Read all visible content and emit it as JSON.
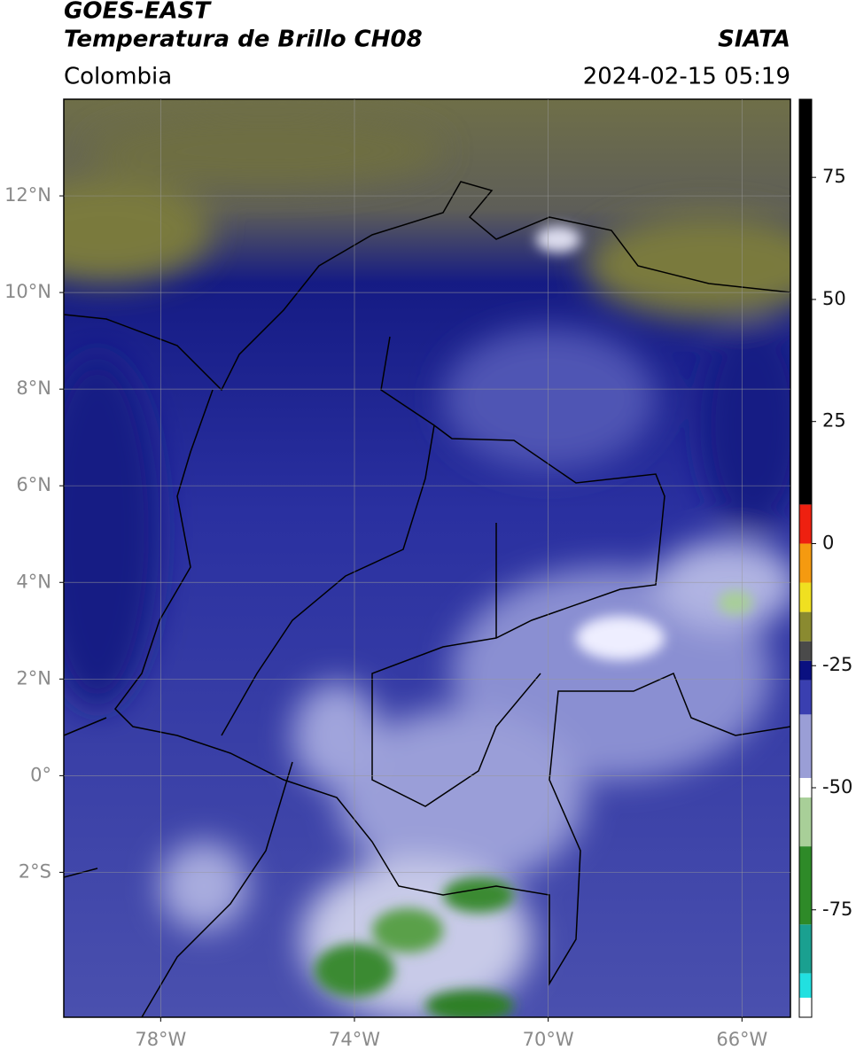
{
  "header": {
    "satellite": "GOES-EAST",
    "product": "Temperatura de Brillo CH08",
    "source": "SIATA",
    "region": "Colombia",
    "datetime": "2024-02-15 05:19"
  },
  "map": {
    "xlim": [
      -80,
      -65
    ],
    "ylim": [
      -5,
      14
    ],
    "grid": true,
    "xticks": [
      {
        "value": -78,
        "label": "78°W"
      },
      {
        "value": -74,
        "label": "74°W"
      },
      {
        "value": -70,
        "label": "70°W"
      },
      {
        "value": -66,
        "label": "66°W"
      }
    ],
    "yticks": [
      {
        "value": 12,
        "label": "12°N"
      },
      {
        "value": 10,
        "label": "10°N"
      },
      {
        "value": 8,
        "label": "8°N"
      },
      {
        "value": 6,
        "label": "6°N"
      },
      {
        "value": 4,
        "label": "4°N"
      },
      {
        "value": 2,
        "label": "2°N"
      },
      {
        "value": 0,
        "label": "0°"
      },
      {
        "value": -2,
        "label": "2°S"
      }
    ]
  },
  "colorbar": {
    "lim": [
      -97,
      91
    ],
    "ticks": [
      -75,
      -50,
      -25,
      0,
      25,
      50,
      75
    ],
    "segments": [
      {
        "from": -97,
        "to": -93,
        "color": "#ffffff"
      },
      {
        "from": -93,
        "to": -88,
        "color": "#22e0e0"
      },
      {
        "from": -88,
        "to": -78,
        "color": "#1aa090"
      },
      {
        "from": -78,
        "to": -62,
        "color": "#2e8a28"
      },
      {
        "from": -62,
        "to": -52,
        "color": "#a8cf98"
      },
      {
        "from": -52,
        "to": -48,
        "color": "#ffffff"
      },
      {
        "from": -48,
        "to": -35,
        "color": "#9a9ed6"
      },
      {
        "from": -35,
        "to": -28,
        "color": "#3a3fb0"
      },
      {
        "from": -28,
        "to": -24,
        "color": "#0a1080"
      },
      {
        "from": -24,
        "to": -20,
        "color": "#4a4a4a"
      },
      {
        "from": -20,
        "to": -14,
        "color": "#8a8a30"
      },
      {
        "from": -14,
        "to": -8,
        "color": "#f0e020"
      },
      {
        "from": -8,
        "to": 0,
        "color": "#f59a10"
      },
      {
        "from": 0,
        "to": 8,
        "color": "#ee2010"
      },
      {
        "from": 8,
        "to": 91,
        "color": "#000000"
      }
    ]
  }
}
